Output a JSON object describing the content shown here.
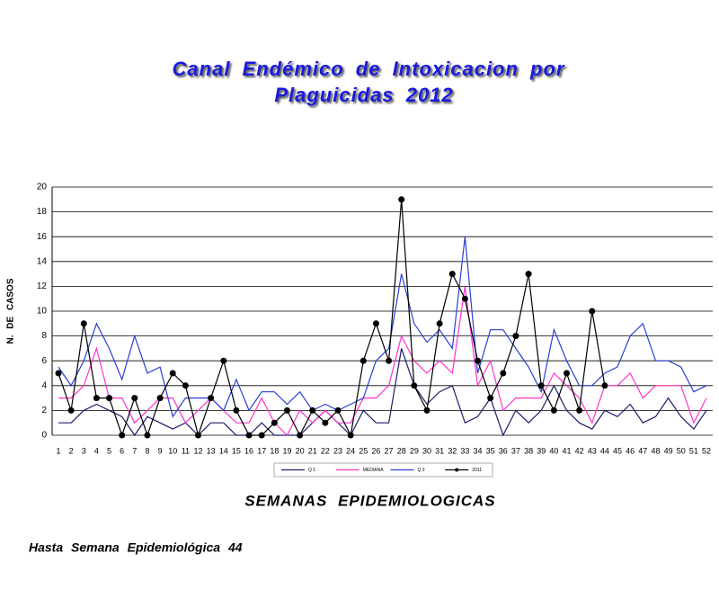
{
  "chart_data": {
    "type": "line",
    "title_lines": [
      "Canal Endémico de Intoxicacion por",
      "Plaguicidas 2012"
    ],
    "x_label": "SEMANAS EPIDEMIOLOGICAS",
    "y_label": "N. DE CASOS",
    "footnote": "Hasta Semana Epidemiológica 44",
    "categories": [
      "1",
      "2",
      "3",
      "4",
      "5",
      "6",
      "7",
      "8",
      "9",
      "10",
      "11",
      "12",
      "13",
      "14",
      "15",
      "16",
      "17",
      "18",
      "19",
      "20",
      "21",
      "22",
      "23",
      "24",
      "25",
      "26",
      "27",
      "28",
      "29",
      "30",
      "31",
      "32",
      "33",
      "34",
      "35",
      "36",
      "37",
      "38",
      "39",
      "40",
      "41",
      "42",
      "43",
      "44",
      "45",
      "46",
      "47",
      "48",
      "49",
      "50",
      "51",
      "52"
    ],
    "ylim": [
      0,
      20
    ],
    "yticks": [
      0,
      2,
      4,
      6,
      8,
      10,
      12,
      14,
      16,
      18,
      20
    ],
    "grid": true,
    "series": [
      {
        "name": "Q 1",
        "color": "#1c1c6e",
        "markers": false,
        "values": [
          1,
          1,
          2,
          2.5,
          2,
          1.5,
          0,
          1.5,
          1,
          0.5,
          1,
          0,
          1,
          1,
          0,
          0,
          1,
          0,
          0,
          0,
          1,
          2,
          1,
          0,
          2,
          1,
          1,
          7,
          4,
          2.5,
          3.5,
          4,
          1,
          1.5,
          3,
          0,
          2,
          1,
          2,
          4,
          2,
          1,
          0.5,
          2,
          1.5,
          2.5,
          1,
          1.5,
          3,
          1.5,
          0.5,
          2
        ]
      },
      {
        "name": "MEDIANA",
        "color": "#ff33cc",
        "markers": false,
        "values": [
          3,
          3,
          4,
          7,
          3,
          3,
          1,
          2,
          3,
          3,
          1,
          2,
          3,
          2,
          1,
          1,
          3,
          1,
          0,
          2,
          1,
          2,
          1,
          1,
          3,
          3,
          4,
          8,
          6,
          5,
          6,
          5,
          12,
          4,
          6,
          2,
          3,
          3,
          3,
          5,
          4,
          3,
          1,
          4,
          4,
          5,
          3,
          4,
          4,
          4,
          1,
          3
        ]
      },
      {
        "name": "Q 3",
        "color": "#2a3fd6",
        "markers": false,
        "values": [
          5.5,
          4,
          6,
          9,
          7,
          4.5,
          8,
          5,
          5.5,
          1.5,
          3,
          3,
          3,
          2,
          4.5,
          2,
          3.5,
          3.5,
          2.5,
          3.5,
          2,
          2.5,
          2,
          2.5,
          3,
          6,
          7,
          13,
          9,
          7.5,
          8.5,
          7,
          16,
          5,
          8.5,
          8.5,
          7,
          5.5,
          3.5,
          8.5,
          6,
          4,
          4,
          5,
          5.5,
          8,
          9,
          6,
          6,
          5.5,
          3.5,
          4
        ]
      },
      {
        "name": "2011",
        "color": "#000000",
        "markers": true,
        "values": [
          5,
          2,
          9,
          3,
          3,
          0,
          3,
          0,
          3,
          5,
          4,
          0,
          3,
          6,
          2,
          0,
          0,
          1,
          2,
          0,
          2,
          1,
          2,
          0,
          6,
          9,
          6,
          19,
          4,
          2,
          9,
          13,
          11,
          6,
          3,
          5,
          8,
          13,
          4,
          2,
          5,
          2,
          10,
          4,
          null,
          null,
          null,
          null,
          null,
          null,
          null,
          null
        ]
      }
    ]
  }
}
